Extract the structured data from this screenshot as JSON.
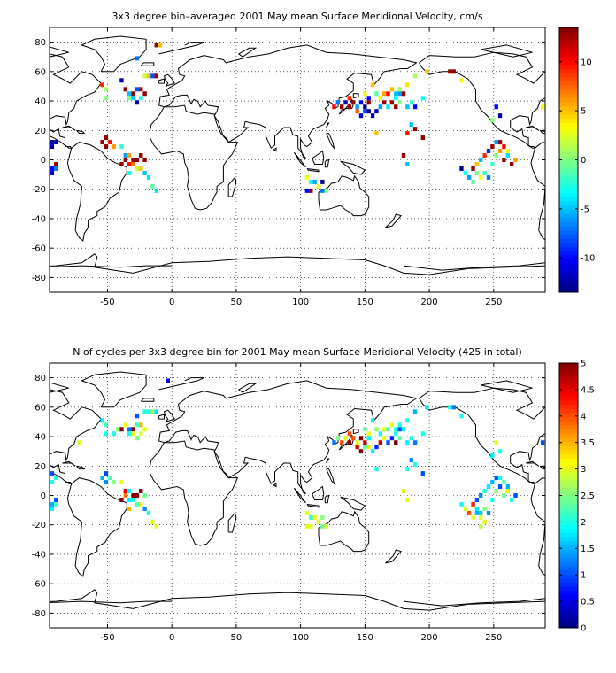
{
  "chart_data": [
    {
      "type": "heatmap",
      "title": "3x3 degree bin–averaged 2001 May mean Surface Meridional Velocity, cm/s",
      "xlim": [
        -95,
        290
      ],
      "ylim": [
        -90,
        90
      ],
      "xticks": [
        -50,
        0,
        50,
        100,
        150,
        200,
        250
      ],
      "yticks": [
        -80,
        -60,
        -40,
        -20,
        0,
        20,
        40,
        60,
        80
      ],
      "colorbar": {
        "min": -13.5,
        "max": 13.5,
        "ticks": [
          -10,
          -5,
          0,
          5,
          10
        ],
        "colormap": "jet"
      },
      "grid": true,
      "cells": [
        [
          -93,
          12,
          -13
        ],
        [
          -90,
          12,
          -12
        ],
        [
          -93,
          9,
          -12
        ],
        [
          -90,
          -3,
          13
        ],
        [
          -93,
          -6,
          -10
        ],
        [
          -90,
          -6,
          -7
        ],
        [
          -93,
          -9,
          -11
        ],
        [
          -54,
          12,
          13
        ],
        [
          -51,
          15,
          13
        ],
        [
          -48,
          12,
          10
        ],
        [
          -51,
          9,
          13
        ],
        [
          -45,
          9,
          6
        ],
        [
          -39,
          9,
          -2
        ],
        [
          -36,
          3,
          -6
        ],
        [
          -33,
          3,
          6
        ],
        [
          -30,
          0,
          13
        ],
        [
          -27,
          0,
          13
        ],
        [
          -24,
          3,
          13
        ],
        [
          -21,
          0,
          13
        ],
        [
          -33,
          -3,
          10
        ],
        [
          -30,
          -3,
          7
        ],
        [
          -36,
          0,
          13
        ],
        [
          -39,
          -3,
          13
        ],
        [
          -27,
          -6,
          2
        ],
        [
          -24,
          -6,
          5
        ],
        [
          -33,
          -9,
          -3
        ],
        [
          -21,
          -9,
          -5
        ],
        [
          -18,
          -12,
          -4
        ],
        [
          -15,
          -18,
          -1
        ],
        [
          -12,
          -21,
          -4
        ],
        [
          -39,
          54,
          -12
        ],
        [
          -36,
          48,
          13
        ],
        [
          -33,
          45,
          -5
        ],
        [
          -30,
          45,
          13
        ],
        [
          -27,
          48,
          -8
        ],
        [
          -24,
          48,
          12
        ],
        [
          -21,
          45,
          13
        ],
        [
          -24,
          42,
          -3
        ],
        [
          -27,
          39,
          -12
        ],
        [
          -30,
          42,
          -5
        ],
        [
          -33,
          42,
          0
        ],
        [
          -21,
          57,
          2
        ],
        [
          -18,
          57,
          5
        ],
        [
          -15,
          57,
          -8
        ],
        [
          -12,
          57,
          13
        ],
        [
          -27,
          69,
          -7
        ],
        [
          -12,
          78,
          13
        ],
        [
          -9,
          78,
          5
        ],
        [
          -51,
          48,
          1
        ],
        [
          -54,
          51,
          9
        ],
        [
          -51,
          42,
          0
        ],
        [
          132,
          36,
          13
        ],
        [
          135,
          39,
          -12
        ],
        [
          138,
          36,
          13
        ],
        [
          141,
          39,
          13
        ],
        [
          144,
          36,
          -6
        ],
        [
          147,
          39,
          -10
        ],
        [
          150,
          36,
          -13
        ],
        [
          153,
          39,
          13
        ],
        [
          144,
          33,
          8
        ],
        [
          147,
          30,
          -12
        ],
        [
          150,
          33,
          -8
        ],
        [
          153,
          33,
          -13
        ],
        [
          156,
          30,
          -12
        ],
        [
          159,
          33,
          -12
        ],
        [
          162,
          36,
          -6
        ],
        [
          165,
          39,
          13
        ],
        [
          168,
          36,
          -4
        ],
        [
          171,
          39,
          13
        ],
        [
          174,
          42,
          -3
        ],
        [
          177,
          39,
          0
        ],
        [
          162,
          42,
          3
        ],
        [
          165,
          45,
          6
        ],
        [
          168,
          45,
          10
        ],
        [
          171,
          48,
          5
        ],
        [
          174,
          45,
          -5
        ],
        [
          177,
          45,
          -6
        ],
        [
          180,
          45,
          13
        ],
        [
          174,
          36,
          13
        ],
        [
          183,
          36,
          -5
        ],
        [
          186,
          39,
          -2
        ],
        [
          189,
          36,
          -10
        ],
        [
          195,
          42,
          -3
        ],
        [
          186,
          24,
          -5
        ],
        [
          183,
          18,
          10
        ],
        [
          189,
          21,
          13
        ],
        [
          195,
          15,
          13
        ],
        [
          180,
          3,
          13
        ],
        [
          183,
          -3,
          -5
        ],
        [
          138,
          42,
          9
        ],
        [
          150,
          45,
          3
        ],
        [
          159,
          18,
          5
        ],
        [
          129,
          39,
          -7
        ],
        [
          126,
          36,
          10
        ],
        [
          153,
          42,
          -10
        ],
        [
          159,
          45,
          -1
        ],
        [
          156,
          51,
          5
        ],
        [
          177,
          48,
          1
        ],
        [
          183,
          51,
          4
        ],
        [
          189,
          57,
          1
        ],
        [
          198,
          60,
          5
        ],
        [
          216,
          60,
          13
        ],
        [
          219,
          60,
          13
        ],
        [
          225,
          54,
          3
        ],
        [
          252,
          36,
          -10
        ],
        [
          255,
          30,
          -13
        ],
        [
          249,
          27,
          0
        ],
        [
          288,
          36,
          3
        ],
        [
          105,
          -12,
          3
        ],
        [
          108,
          -15,
          -3
        ],
        [
          111,
          -15,
          -6
        ],
        [
          114,
          -18,
          3
        ],
        [
          117,
          -15,
          -13
        ],
        [
          120,
          -21,
          0
        ],
        [
          105,
          -21,
          -10
        ],
        [
          108,
          -21,
          13
        ],
        [
          117,
          -21,
          -7
        ],
        [
          225,
          -6,
          -13
        ],
        [
          228,
          -9,
          -3
        ],
        [
          231,
          -12,
          -6
        ],
        [
          234,
          -15,
          -1
        ],
        [
          237,
          -9,
          0
        ],
        [
          240,
          -12,
          3
        ],
        [
          234,
          -6,
          13
        ],
        [
          237,
          -3,
          5
        ],
        [
          240,
          0,
          -5
        ],
        [
          243,
          3,
          9
        ],
        [
          246,
          6,
          -9
        ],
        [
          249,
          9,
          13
        ],
        [
          252,
          3,
          0
        ],
        [
          255,
          6,
          6
        ],
        [
          249,
          -3,
          -2
        ],
        [
          243,
          -9,
          -2
        ],
        [
          246,
          -12,
          -7
        ],
        [
          252,
          12,
          -6
        ],
        [
          255,
          12,
          13
        ],
        [
          258,
          9,
          10
        ],
        [
          261,
          6,
          3
        ],
        [
          258,
          0,
          13
        ],
        [
          264,
          -3,
          13
        ],
        [
          261,
          3,
          -4
        ],
        [
          267,
          0,
          6
        ]
      ]
    },
    {
      "type": "heatmap",
      "title": "N of cycles per 3x3 degree bin for 2001 May mean Surface Meridional Velocity (425 in total)",
      "xlim": [
        -95,
        290
      ],
      "ylim": [
        -90,
        90
      ],
      "xticks": [
        -50,
        0,
        50,
        100,
        150,
        200,
        250
      ],
      "yticks": [
        -80,
        -60,
        -40,
        -20,
        0,
        20,
        40,
        60,
        80
      ],
      "colorbar": {
        "min": 0,
        "max": 5,
        "ticks": [
          0,
          0.5,
          1,
          1.5,
          2,
          2.5,
          3,
          3.5,
          4,
          4.5,
          5
        ],
        "colormap": "jet"
      },
      "grid": true,
      "cells": [
        [
          -93,
          15,
          1
        ],
        [
          -90,
          12,
          2
        ],
        [
          -93,
          9,
          2
        ],
        [
          -90,
          -3,
          1
        ],
        [
          -93,
          -6,
          1.5
        ],
        [
          -90,
          -6,
          2.2
        ],
        [
          -93,
          -9,
          1.8
        ],
        [
          -54,
          12,
          1.5
        ],
        [
          -51,
          15,
          1
        ],
        [
          -48,
          12,
          2.2
        ],
        [
          -51,
          9,
          1.3
        ],
        [
          -45,
          9,
          2.5
        ],
        [
          -39,
          9,
          3
        ],
        [
          -36,
          3,
          4.5
        ],
        [
          -33,
          3,
          1.8
        ],
        [
          -30,
          0,
          5
        ],
        [
          -27,
          0,
          5
        ],
        [
          -24,
          3,
          5
        ],
        [
          -21,
          0,
          2.4
        ],
        [
          -33,
          -3,
          1.8
        ],
        [
          -30,
          -3,
          2
        ],
        [
          -36,
          0,
          3.8
        ],
        [
          -39,
          -3,
          5
        ],
        [
          -27,
          -6,
          2.3
        ],
        [
          -24,
          -6,
          3
        ],
        [
          -33,
          -9,
          3.5
        ],
        [
          -21,
          -9,
          1.3
        ],
        [
          -18,
          -12,
          2
        ],
        [
          -15,
          -18,
          3
        ],
        [
          -12,
          -21,
          3
        ],
        [
          -39,
          45,
          5
        ],
        [
          -36,
          48,
          3
        ],
        [
          -33,
          45,
          1.2
        ],
        [
          -30,
          45,
          5
        ],
        [
          -27,
          48,
          2.2
        ],
        [
          -24,
          48,
          3.5
        ],
        [
          -21,
          45,
          3
        ],
        [
          -24,
          42,
          3
        ],
        [
          -27,
          39,
          2.5
        ],
        [
          -30,
          42,
          3
        ],
        [
          -33,
          42,
          2
        ],
        [
          -21,
          57,
          2
        ],
        [
          -18,
          57,
          2
        ],
        [
          -15,
          57,
          2.5
        ],
        [
          -12,
          57,
          1.7
        ],
        [
          -27,
          54,
          1
        ],
        [
          -3,
          78,
          0.5
        ],
        [
          -51,
          48,
          2.2
        ],
        [
          -54,
          51,
          1.8
        ],
        [
          -51,
          42,
          2
        ],
        [
          -42,
          45,
          2.5
        ],
        [
          -45,
          42,
          2
        ],
        [
          -72,
          36,
          3
        ],
        [
          132,
          36,
          4
        ],
        [
          135,
          39,
          3
        ],
        [
          138,
          36,
          5
        ],
        [
          141,
          39,
          4
        ],
        [
          144,
          36,
          3
        ],
        [
          147,
          39,
          5
        ],
        [
          150,
          36,
          4.6
        ],
        [
          153,
          39,
          1.8
        ],
        [
          144,
          33,
          4.5
        ],
        [
          147,
          30,
          5
        ],
        [
          150,
          33,
          2.2
        ],
        [
          153,
          33,
          3
        ],
        [
          156,
          30,
          1.8
        ],
        [
          159,
          33,
          0.8
        ],
        [
          162,
          36,
          4.6
        ],
        [
          165,
          39,
          3
        ],
        [
          168,
          36,
          1
        ],
        [
          171,
          39,
          0.8
        ],
        [
          174,
          42,
          2
        ],
        [
          177,
          39,
          2.3
        ],
        [
          162,
          42,
          2
        ],
        [
          165,
          45,
          3
        ],
        [
          168,
          45,
          2.3
        ],
        [
          171,
          48,
          3
        ],
        [
          174,
          45,
          2
        ],
        [
          177,
          45,
          1
        ],
        [
          180,
          45,
          1.8
        ],
        [
          174,
          36,
          5
        ],
        [
          183,
          36,
          1.8
        ],
        [
          186,
          39,
          2
        ],
        [
          189,
          36,
          1.2
        ],
        [
          195,
          42,
          2
        ],
        [
          186,
          24,
          1.3
        ],
        [
          183,
          18,
          2
        ],
        [
          189,
          21,
          2
        ],
        [
          195,
          15,
          1
        ],
        [
          180,
          3,
          3
        ],
        [
          183,
          -3,
          3
        ],
        [
          138,
          42,
          4
        ],
        [
          150,
          45,
          2.3
        ],
        [
          159,
          18,
          2
        ],
        [
          129,
          39,
          2.5
        ],
        [
          126,
          36,
          1.2
        ],
        [
          153,
          42,
          3
        ],
        [
          159,
          45,
          2.6
        ],
        [
          156,
          51,
          1.8
        ],
        [
          177,
          48,
          2
        ],
        [
          183,
          51,
          2
        ],
        [
          189,
          57,
          1.5
        ],
        [
          198,
          60,
          1.8
        ],
        [
          216,
          60,
          2
        ],
        [
          219,
          60,
          1.2
        ],
        [
          225,
          54,
          2
        ],
        [
          252,
          36,
          3
        ],
        [
          255,
          30,
          2
        ],
        [
          249,
          27,
          1.8
        ],
        [
          288,
          36,
          1
        ],
        [
          105,
          -12,
          3
        ],
        [
          108,
          -15,
          2
        ],
        [
          111,
          -15,
          3
        ],
        [
          114,
          -18,
          3
        ],
        [
          117,
          -15,
          2.5
        ],
        [
          120,
          -21,
          3
        ],
        [
          105,
          -21,
          3
        ],
        [
          108,
          -21,
          3
        ],
        [
          117,
          -21,
          2.4
        ],
        [
          225,
          -6,
          2
        ],
        [
          228,
          -9,
          3
        ],
        [
          231,
          -12,
          4
        ],
        [
          234,
          -15,
          3
        ],
        [
          237,
          -9,
          1.8
        ],
        [
          240,
          -12,
          1.6
        ],
        [
          234,
          -6,
          4.2
        ],
        [
          237,
          -3,
          1
        ],
        [
          240,
          0,
          1.3
        ],
        [
          243,
          3,
          2
        ],
        [
          246,
          6,
          1.8
        ],
        [
          249,
          9,
          1.5
        ],
        [
          252,
          3,
          2.5
        ],
        [
          255,
          6,
          1
        ],
        [
          249,
          -3,
          2
        ],
        [
          243,
          -9,
          2.5
        ],
        [
          246,
          -12,
          1.3
        ],
        [
          252,
          12,
          1
        ],
        [
          255,
          12,
          2
        ],
        [
          258,
          9,
          2.3
        ],
        [
          261,
          6,
          1.5
        ],
        [
          258,
          0,
          2.4
        ],
        [
          264,
          -3,
          2
        ],
        [
          261,
          3,
          3
        ],
        [
          267,
          0,
          1
        ],
        [
          237,
          -12,
          1.5
        ],
        [
          240,
          -15,
          3
        ],
        [
          243,
          -18,
          3
        ],
        [
          240,
          -21,
          2.8
        ]
      ]
    }
  ]
}
